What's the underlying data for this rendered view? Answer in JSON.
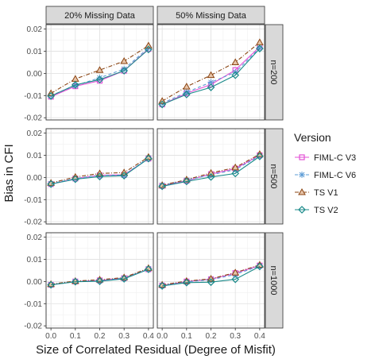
{
  "chart_data": {
    "type": "line",
    "facet_columns": [
      "20% Missing Data",
      "50% Missing Data"
    ],
    "facet_rows": [
      "n=200",
      "n=500",
      "n=1000"
    ],
    "xlabel": "Size of Correlated Residual (Degree of Misfit)",
    "ylabel": "Bias in CFI",
    "x": [
      0.0,
      0.1,
      0.2,
      0.3,
      0.4
    ],
    "x_tick_labels": [
      "0.0",
      "0.1",
      "0.2",
      "0.3",
      "0.4"
    ],
    "ylim": [
      -0.021,
      0.022
    ],
    "y_ticks": [
      -0.02,
      -0.01,
      0.0,
      0.01,
      0.02
    ],
    "y_tick_labels": [
      "-0.02",
      "-0.01",
      "0.00",
      "0.01",
      "0.02"
    ],
    "grid": true,
    "legend": {
      "title": "Version",
      "placement": "right",
      "entries": [
        "FIML-C V3",
        "FIML-C V6",
        "TS V1",
        "TS V2"
      ]
    },
    "series_styles": [
      {
        "name": "FIML-C V3",
        "color": "#e34fd6",
        "marker": "square",
        "dash": "solid"
      },
      {
        "name": "FIML-C V6",
        "color": "#5b9bd5",
        "marker": "asterisk",
        "dash": "dashed"
      },
      {
        "name": "TS V1",
        "color": "#8b4513",
        "marker": "triangle",
        "dash": "dotdash"
      },
      {
        "name": "TS V2",
        "color": "#1a8a8a",
        "marker": "diamond",
        "dash": "solid"
      }
    ],
    "panels": [
      {
        "row": 0,
        "col": 0,
        "series": [
          {
            "name": "FIML-C V3",
            "values": [
              -0.0105,
              -0.0058,
              -0.0033,
              0.0012,
              0.011
            ]
          },
          {
            "name": "FIML-C V6",
            "values": [
              -0.01,
              -0.0055,
              -0.002,
              0.002,
              0.0115
            ]
          },
          {
            "name": "TS V1",
            "values": [
              -0.009,
              -0.0025,
              0.0015,
              0.0055,
              0.0125
            ]
          },
          {
            "name": "TS V2",
            "values": [
              -0.0102,
              -0.0052,
              -0.0028,
              0.0012,
              0.0108
            ]
          }
        ]
      },
      {
        "row": 0,
        "col": 1,
        "series": [
          {
            "name": "FIML-C V3",
            "values": [
              -0.014,
              -0.009,
              -0.005,
              0.0015,
              0.012
            ]
          },
          {
            "name": "FIML-C V6",
            "values": [
              -0.0135,
              -0.0085,
              -0.004,
              0.0005,
              0.0115
            ]
          },
          {
            "name": "TS V1",
            "values": [
              -0.0125,
              -0.006,
              -0.0008,
              0.005,
              0.014
            ]
          },
          {
            "name": "TS V2",
            "values": [
              -0.014,
              -0.0095,
              -0.0063,
              -0.0008,
              0.0112
            ]
          }
        ]
      },
      {
        "row": 1,
        "col": 0,
        "series": [
          {
            "name": "FIML-C V3",
            "values": [
              -0.003,
              -0.0005,
              0.001,
              0.0012,
              0.0085
            ]
          },
          {
            "name": "FIML-C V6",
            "values": [
              -0.0028,
              -0.0005,
              0.001,
              0.001,
              0.0088
            ]
          },
          {
            "name": "TS V1",
            "values": [
              -0.0025,
              0.0002,
              0.0018,
              0.0022,
              0.0092
            ]
          },
          {
            "name": "TS V2",
            "values": [
              -0.003,
              -0.0008,
              0.0004,
              0.0008,
              0.0085
            ]
          }
        ]
      },
      {
        "row": 1,
        "col": 1,
        "series": [
          {
            "name": "FIML-C V3",
            "values": [
              -0.0038,
              -0.0015,
              0.0015,
              0.004,
              0.01
            ]
          },
          {
            "name": "FIML-C V6",
            "values": [
              -0.0035,
              -0.0012,
              0.0012,
              0.0035,
              0.0098
            ]
          },
          {
            "name": "TS V1",
            "values": [
              -0.0035,
              -0.001,
              0.002,
              0.0045,
              0.0105
            ]
          },
          {
            "name": "TS V2",
            "values": [
              -0.004,
              -0.0018,
              0.0002,
              0.0018,
              0.0095
            ]
          }
        ]
      },
      {
        "row": 2,
        "col": 0,
        "series": [
          {
            "name": "FIML-C V3",
            "values": [
              -0.0015,
              0.0,
              0.0005,
              0.0015,
              0.0055
            ]
          },
          {
            "name": "FIML-C V6",
            "values": [
              -0.0015,
              0.0,
              0.0005,
              0.0015,
              0.0058
            ]
          },
          {
            "name": "TS V1",
            "values": [
              -0.0012,
              0.0002,
              0.0008,
              0.0018,
              0.006
            ]
          },
          {
            "name": "TS V2",
            "values": [
              -0.0015,
              -0.0001,
              0.0001,
              0.0012,
              0.0055
            ]
          }
        ]
      },
      {
        "row": 2,
        "col": 1,
        "series": [
          {
            "name": "FIML-C V3",
            "values": [
              -0.0018,
              0.0,
              0.001,
              0.0038,
              0.0072
            ]
          },
          {
            "name": "FIML-C V6",
            "values": [
              -0.0018,
              -0.0002,
              0.0008,
              0.0032,
              0.007
            ]
          },
          {
            "name": "TS V1",
            "values": [
              -0.0015,
              0.0002,
              0.0012,
              0.004,
              0.0075
            ]
          },
          {
            "name": "TS V2",
            "values": [
              -0.002,
              -0.0005,
              -0.0003,
              0.001,
              0.0068
            ]
          }
        ]
      }
    ]
  }
}
